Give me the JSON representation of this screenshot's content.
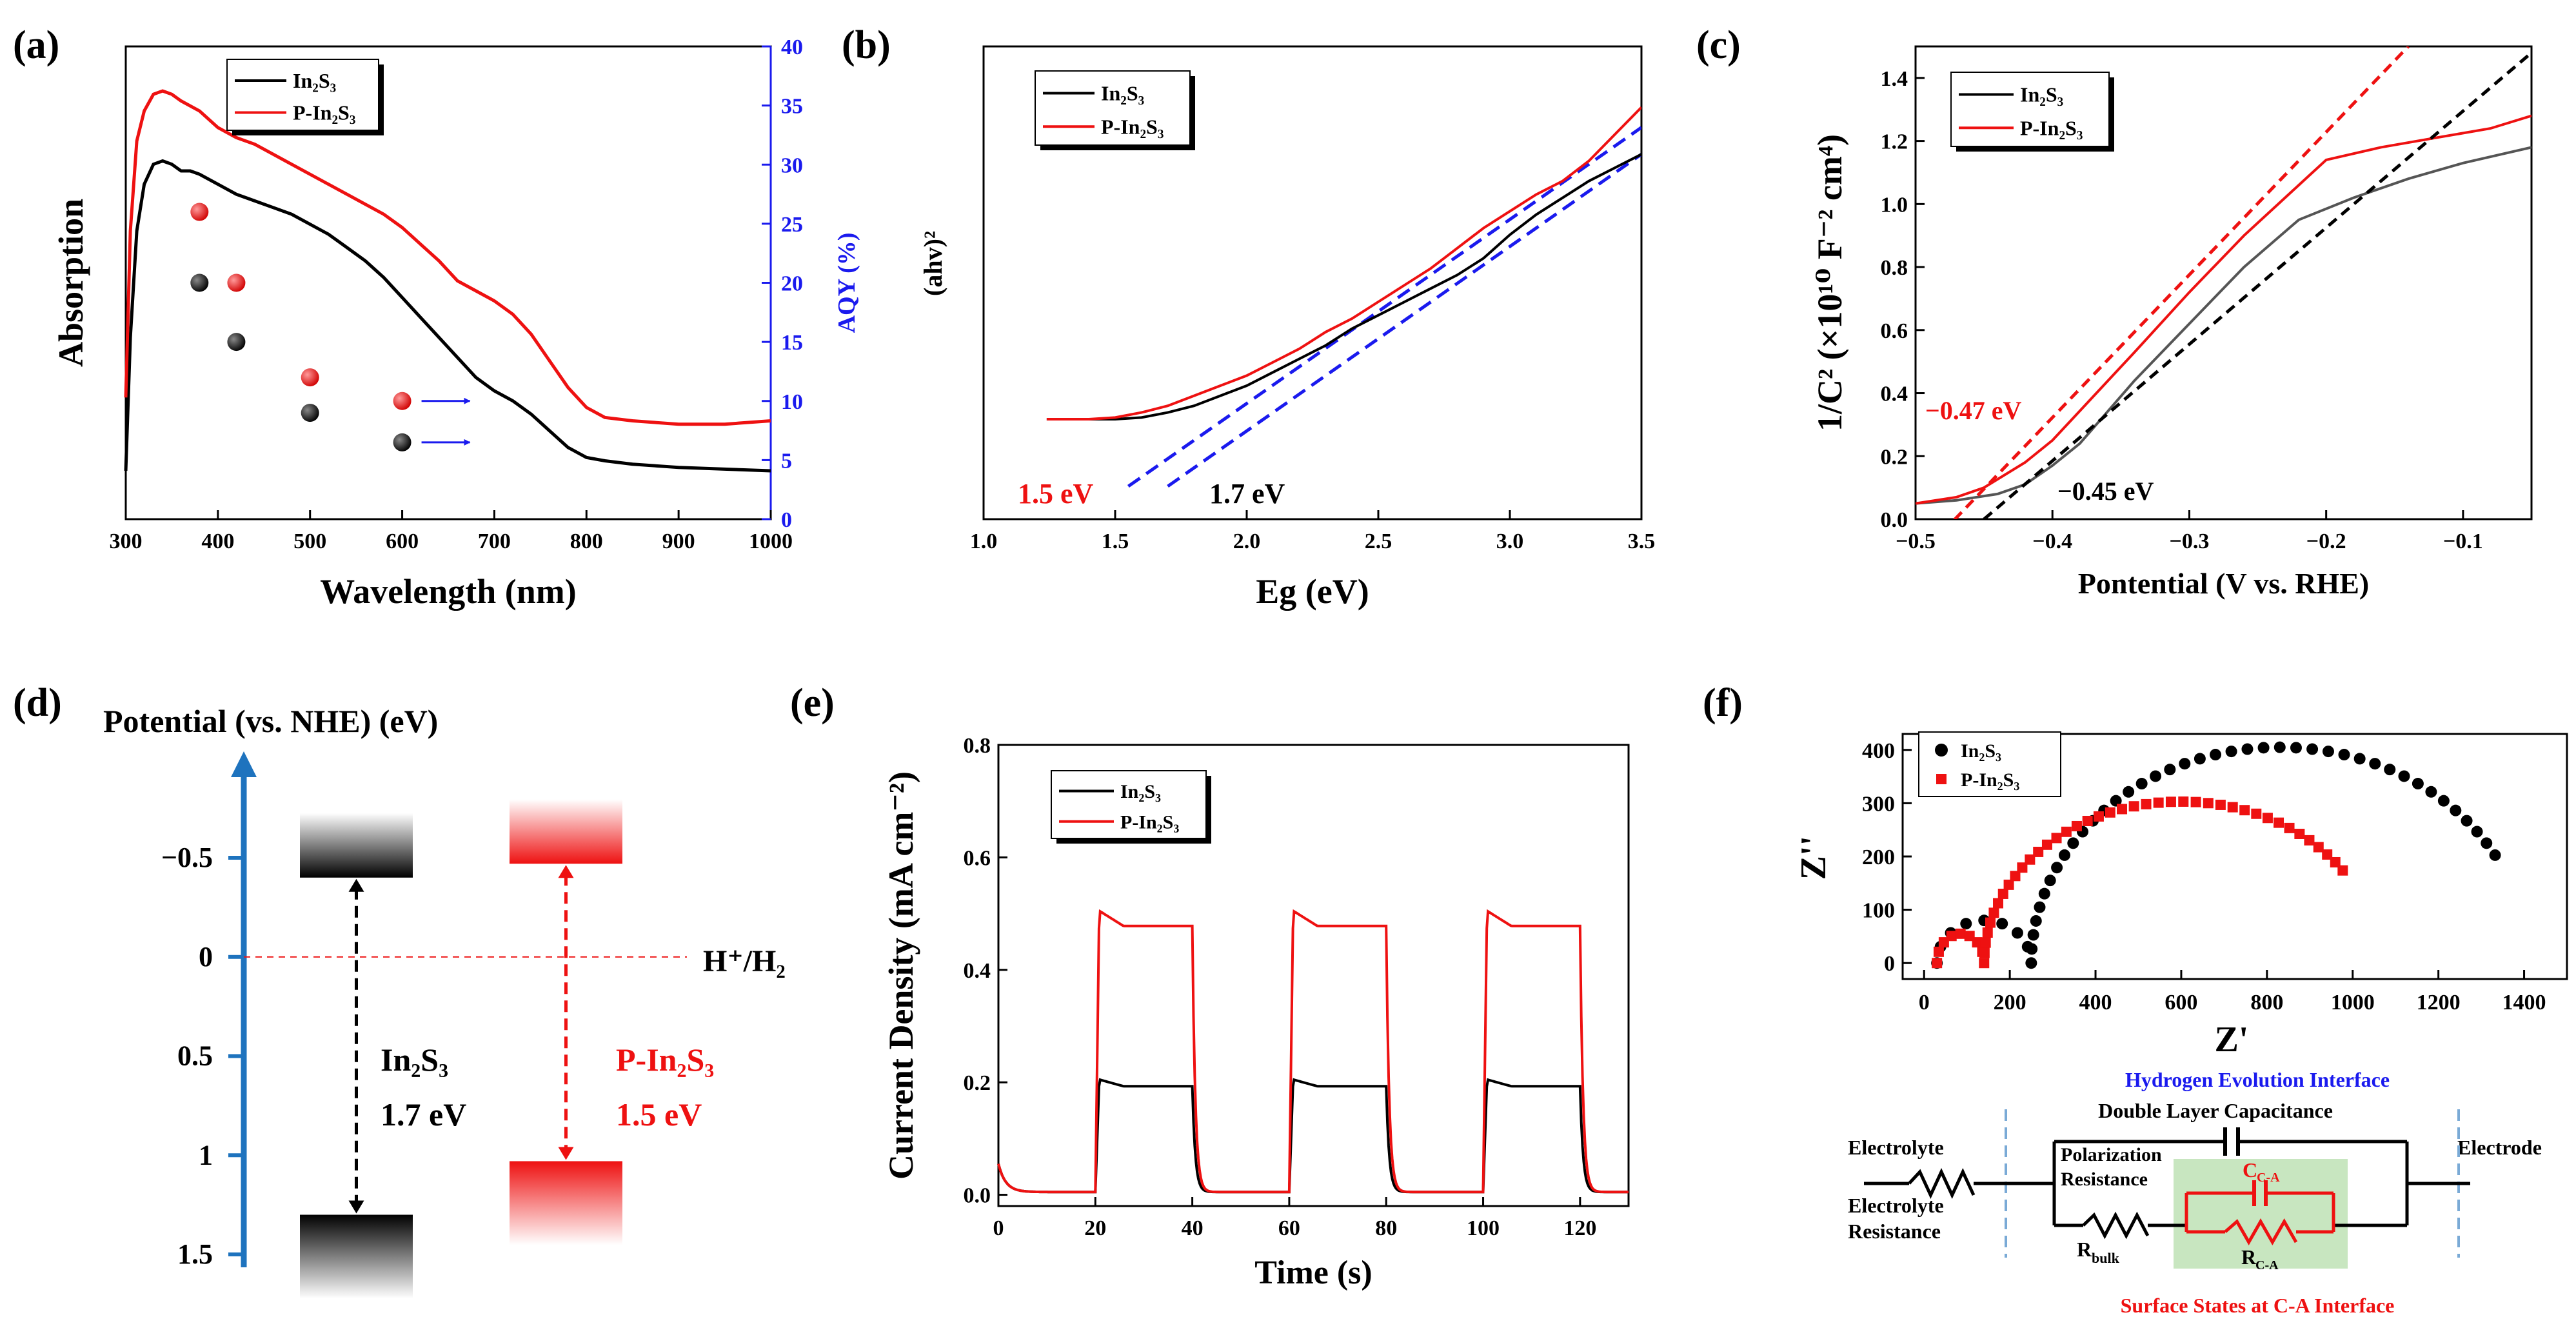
{
  "colors": {
    "black": "#000000",
    "red": "#ee1111",
    "blue": "#1a1aee",
    "nhe_blue": "#1e73be",
    "hl_green": "#c8e6c0",
    "dashed_blue": "#7aaad6"
  },
  "panel_a": {
    "label": "(a)",
    "chart_data": {
      "type": "line",
      "xlabel": "Wavelength (nm)",
      "ylabel": "Absorption",
      "y2label": "AQY (%)",
      "xlim": [
        300,
        1000
      ],
      "y2lim": [
        0,
        40
      ],
      "xticks": [
        300,
        400,
        500,
        600,
        700,
        800,
        900,
        1000
      ],
      "y2ticks": [
        0,
        5,
        10,
        15,
        20,
        25,
        30,
        35,
        40
      ],
      "legend": [
        "In2S3",
        "P-In2S3"
      ],
      "series": [
        {
          "name": "In2S3",
          "x": [
            300,
            305,
            312,
            320,
            330,
            340,
            350,
            360,
            370,
            380,
            400,
            420,
            440,
            460,
            480,
            500,
            520,
            540,
            560,
            580,
            600,
            620,
            640,
            660,
            680,
            700,
            720,
            740,
            760,
            780,
            800,
            820,
            850,
            900,
            950,
            1000
          ],
          "y": [
            0.0,
            0.4,
            0.72,
            0.86,
            0.92,
            0.93,
            0.92,
            0.9,
            0.9,
            0.89,
            0.86,
            0.83,
            0.81,
            0.79,
            0.77,
            0.74,
            0.71,
            0.67,
            0.63,
            0.58,
            0.52,
            0.46,
            0.4,
            0.34,
            0.28,
            0.24,
            0.21,
            0.17,
            0.12,
            0.07,
            0.04,
            0.03,
            0.02,
            0.01,
            0.005,
            0.0
          ]
        },
        {
          "name": "P-In2S3",
          "x": [
            300,
            305,
            312,
            320,
            330,
            340,
            350,
            360,
            380,
            400,
            420,
            440,
            460,
            480,
            500,
            520,
            540,
            560,
            580,
            600,
            620,
            640,
            660,
            680,
            700,
            720,
            740,
            760,
            780,
            800,
            820,
            850,
            900,
            950,
            1000
          ],
          "y": [
            0.22,
            0.72,
            0.99,
            1.08,
            1.13,
            1.14,
            1.13,
            1.11,
            1.08,
            1.03,
            1.0,
            0.98,
            0.95,
            0.92,
            0.89,
            0.86,
            0.83,
            0.8,
            0.77,
            0.73,
            0.68,
            0.63,
            0.57,
            0.54,
            0.51,
            0.47,
            0.41,
            0.33,
            0.25,
            0.19,
            0.16,
            0.15,
            0.14,
            0.14,
            0.15
          ]
        }
      ],
      "aqy": [
        {
          "name": "In2S3",
          "points": [
            [
              380,
              20
            ],
            [
              420,
              15
            ],
            [
              500,
              9
            ],
            [
              600,
              6.5
            ]
          ]
        },
        {
          "name": "P-In2S3",
          "points": [
            [
              380,
              26
            ],
            [
              420,
              20
            ],
            [
              500,
              12
            ],
            [
              600,
              10
            ]
          ]
        }
      ]
    }
  },
  "panel_b": {
    "label": "(b)",
    "annot_red": "1.5 eV",
    "annot_black": "1.7 eV",
    "chart_data": {
      "type": "line",
      "xlabel": "Eg (eV)",
      "ylabel": "(ahv)²",
      "xlim": [
        1.0,
        3.5
      ],
      "xticks": [
        1.0,
        1.5,
        2.0,
        2.5,
        3.0,
        3.5
      ],
      "legend": [
        "In2S3",
        "P-In2S3"
      ],
      "series": [
        {
          "name": "In2S3",
          "x": [
            1.24,
            1.4,
            1.5,
            1.6,
            1.7,
            1.8,
            1.9,
            2.0,
            2.1,
            2.2,
            2.3,
            2.4,
            2.5,
            2.6,
            2.7,
            2.8,
            2.9,
            3.0,
            3.1,
            3.2,
            3.3,
            3.4,
            3.5
          ],
          "y": [
            0.0,
            0.0,
            0.0,
            0.005,
            0.02,
            0.04,
            0.07,
            0.1,
            0.14,
            0.18,
            0.22,
            0.27,
            0.31,
            0.35,
            0.39,
            0.43,
            0.48,
            0.55,
            0.61,
            0.66,
            0.71,
            0.75,
            0.79
          ]
        },
        {
          "name": "P-In2S3",
          "x": [
            1.24,
            1.4,
            1.5,
            1.6,
            1.7,
            1.8,
            1.9,
            2.0,
            2.1,
            2.2,
            2.3,
            2.4,
            2.5,
            2.6,
            2.7,
            2.8,
            2.9,
            3.0,
            3.1,
            3.2,
            3.3,
            3.4,
            3.5
          ],
          "y": [
            0.0,
            0.0,
            0.005,
            0.02,
            0.04,
            0.07,
            0.1,
            0.13,
            0.17,
            0.21,
            0.26,
            0.3,
            0.35,
            0.4,
            0.45,
            0.51,
            0.57,
            0.62,
            0.67,
            0.71,
            0.77,
            0.85,
            0.93
          ]
        }
      ],
      "fits": [
        {
          "name": "In2S3",
          "x": [
            1.7,
            3.5
          ],
          "y": [
            -0.2,
            0.79
          ]
        },
        {
          "name": "P-In2S3",
          "x": [
            1.55,
            3.5
          ],
          "y": [
            -0.2,
            0.87
          ]
        }
      ]
    }
  },
  "panel_c": {
    "label": "(c)",
    "annot_red": "−0.47 eV",
    "annot_black": "−0.45 eV",
    "chart_data": {
      "type": "line",
      "xlabel": "Pontential (V vs. RHE)",
      "ylabel": "1/C² (×10¹⁰ F⁻² cm⁴)",
      "xlim": [
        -0.5,
        -0.05
      ],
      "ylim": [
        0,
        1.5
      ],
      "xticks": [
        -0.5,
        -0.4,
        -0.3,
        -0.2,
        -0.1
      ],
      "xtick_labels": [
        "−0.5",
        "−0.4",
        "−0.3",
        "−0.2",
        "−0.1"
      ],
      "yticks": [
        0,
        0.2,
        0.4,
        0.6,
        0.8,
        1.0,
        1.2,
        1.4
      ],
      "ytick_labels": [
        "0.0",
        "0.2",
        "0.4",
        "0.6",
        "0.8",
        "1.0",
        "1.2",
        "1.4"
      ],
      "legend": [
        "In2S3",
        "P-In2S3"
      ],
      "series": [
        {
          "name": "In2S3",
          "x": [
            -0.5,
            -0.47,
            -0.44,
            -0.42,
            -0.4,
            -0.38,
            -0.36,
            -0.34,
            -0.3,
            -0.26,
            -0.22,
            -0.18,
            -0.14,
            -0.1,
            -0.05
          ],
          "y": [
            0.05,
            0.06,
            0.08,
            0.11,
            0.17,
            0.24,
            0.34,
            0.44,
            0.62,
            0.8,
            0.95,
            1.02,
            1.08,
            1.13,
            1.18
          ]
        },
        {
          "name": "P-In2S3",
          "x": [
            -0.5,
            -0.47,
            -0.45,
            -0.42,
            -0.4,
            -0.37,
            -0.34,
            -0.3,
            -0.26,
            -0.22,
            -0.2,
            -0.16,
            -0.12,
            -0.08,
            -0.05
          ],
          "y": [
            0.05,
            0.07,
            0.1,
            0.18,
            0.25,
            0.39,
            0.53,
            0.72,
            0.9,
            1.06,
            1.14,
            1.18,
            1.21,
            1.24,
            1.28
          ]
        }
      ],
      "fits": [
        {
          "name": "In2S3",
          "x": [
            -0.45,
            -0.05
          ],
          "y": [
            0,
            1.48
          ]
        },
        {
          "name": "P-In2S3",
          "x": [
            -0.48,
            -0.14
          ],
          "y": [
            -0.04,
            1.5
          ]
        }
      ]
    }
  },
  "panel_d": {
    "label": "(d)",
    "axis_title": "Potential (vs. NHE)  (eV)",
    "ticks": [
      "−0.5",
      "0",
      "0.5",
      "1",
      "1.5"
    ],
    "redox_label": "H⁺/H₂",
    "sample_black": "In₂S₃",
    "gap_black": "1.7 eV",
    "sample_red": "P-In₂S₃",
    "gap_red": "1.5 eV",
    "chart_data": {
      "type": "diagram",
      "bands": [
        {
          "name": "In2S3",
          "cb": -0.4,
          "vb": 1.3,
          "gap": 1.7
        },
        {
          "name": "P-In2S3",
          "cb": -0.47,
          "vb": 1.03,
          "gap": 1.5
        }
      ]
    }
  },
  "panel_e": {
    "label": "(e)",
    "chart_data": {
      "type": "line",
      "xlabel": "Time (s)",
      "ylabel": "Current Density (mA cm⁻²)",
      "xlim": [
        0,
        130
      ],
      "ylim": [
        -0.02,
        0.8
      ],
      "xticks": [
        0,
        20,
        40,
        60,
        80,
        100,
        120
      ],
      "yticks": [
        0.0,
        0.2,
        0.4,
        0.6,
        0.8
      ],
      "ytick_labels": [
        "0.0",
        "0.2",
        "0.4",
        "0.6",
        "0.8"
      ],
      "legend": [
        "In2S3",
        "P-In2S3"
      ],
      "light_on": [
        [
          20,
          40
        ],
        [
          60,
          80
        ],
        [
          100,
          120
        ]
      ],
      "series": [
        {
          "name": "In2S3",
          "on_start": 0.205,
          "on_end": 0.193,
          "dark": 0.005
        },
        {
          "name": "P-In2S3",
          "on_start": 0.505,
          "on_end": 0.478,
          "dark": 0.005
        }
      ]
    }
  },
  "panel_f": {
    "label": "(f)",
    "chart_data": {
      "type": "scatter",
      "xlabel": "Z'",
      "ylabel": "Z''",
      "xlim": [
        -50,
        1500
      ],
      "ylim": [
        -30,
        430
      ],
      "xticks": [
        0,
        200,
        400,
        600,
        800,
        1000,
        1200,
        1400
      ],
      "yticks": [
        0,
        100,
        200,
        300,
        400
      ],
      "legend": [
        "In2S3",
        "P-In2S3"
      ],
      "series": [
        {
          "name": "In2S3",
          "arc1": [
            30,
            250,
            80
          ],
          "arc2": [
            250,
            1410,
            405
          ],
          "end_deg": 150
        },
        {
          "name": "P-In2S3",
          "arc1": [
            30,
            140,
            55
          ],
          "arc2": [
            140,
            1060,
            303
          ],
          "end_deg": 145
        }
      ]
    },
    "circuit": {
      "title": "Hydrogen Evolution Interface",
      "dlc": "Double Layer Capacitance",
      "electrolyte": "Electrolyte",
      "electrolyte_res": [
        "Electrolyte",
        "Resistance"
      ],
      "polarization": [
        "Polarization",
        "Resistance"
      ],
      "rbulk": "R",
      "rbulk_sub": "bulk",
      "cca": "C",
      "cca_sub": "C-A",
      "rca": "R",
      "rca_sub": "C-A",
      "electrode": "Electrode",
      "surface": "Surface States at C-A Interface"
    }
  },
  "legend_labels": {
    "in2s3": "In₂S₃",
    "pin2s3": "P-In₂S₃"
  }
}
